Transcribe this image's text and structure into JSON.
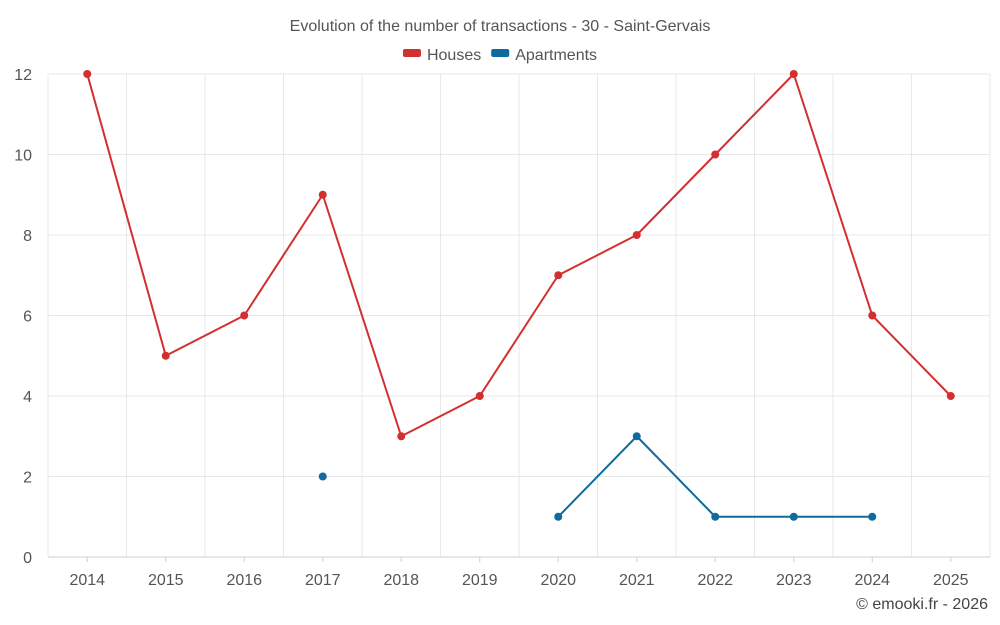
{
  "chart_data": {
    "type": "line",
    "title": "Evolution of the number of transactions - 30 - Saint-Gervais",
    "xlabel": "",
    "ylabel": "",
    "categories": [
      "2014",
      "2015",
      "2016",
      "2017",
      "2018",
      "2019",
      "2020",
      "2021",
      "2022",
      "2023",
      "2024",
      "2025"
    ],
    "y_ticks": [
      "0",
      "2",
      "4",
      "6",
      "8",
      "10",
      "12"
    ],
    "ylim": [
      0,
      12
    ],
    "grid": true,
    "legend_position": "top-center",
    "series": [
      {
        "name": "Houses",
        "color": "#d32f2f",
        "values": [
          12,
          5,
          6,
          9,
          3,
          4,
          7,
          8,
          10,
          12,
          6,
          4
        ]
      },
      {
        "name": "Apartments",
        "color": "#0f6a9e",
        "values": [
          null,
          null,
          null,
          2,
          null,
          null,
          1,
          3,
          1,
          1,
          1,
          null
        ]
      }
    ]
  },
  "credit": "© emooki.fr - 2026"
}
